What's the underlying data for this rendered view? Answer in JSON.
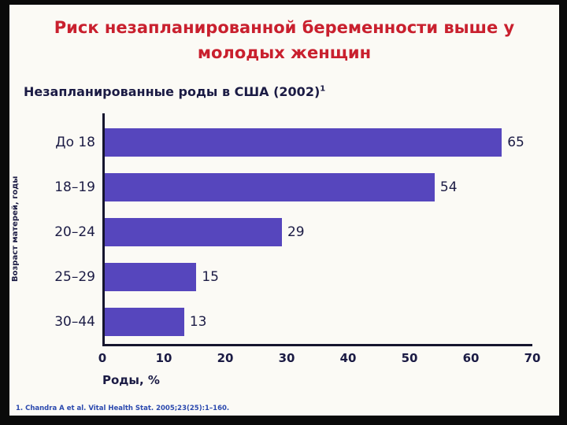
{
  "slide": {
    "title_lines": [
      "Риск незапланированной беременности выше у",
      "молодых женщин"
    ],
    "subtitle": "Незапланированные роды в США (2002)",
    "subtitle_sup": "1",
    "footnote": "1. Chandra A et al. Vital Health Stat. 2005;23(25):1–160."
  },
  "chart_data": {
    "type": "bar",
    "orientation": "horizontal",
    "title": "Незапланированные роды в США (2002)",
    "categories": [
      "До 18",
      "18–19",
      "20–24",
      "25–29",
      "30–44"
    ],
    "values": [
      65,
      54,
      29,
      15,
      13
    ],
    "xlabel": "Роды, %",
    "ylabel": "Возраст матерей, годы",
    "xlim": [
      0,
      70
    ],
    "xticks": [
      0,
      10,
      20,
      30,
      40,
      50,
      60,
      70
    ],
    "grid": false,
    "legend": "none",
    "value_labels": true,
    "bar_color": "#5646bd"
  },
  "colors": {
    "frame_black": "#0a0a0a",
    "slide_bg": "#fbfaf5",
    "title_red": "#c9202e",
    "navy": "#1b1b44",
    "axis": "#15152e",
    "bar": "#5646bd",
    "footnote_blue": "#2b49ae"
  }
}
